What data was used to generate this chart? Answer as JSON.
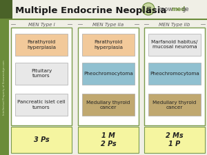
{
  "title": "Multiple Endocrine Neoplasia",
  "bg_color": "#f0efe6",
  "header_bg": "#f0efe6",
  "dark_green": "#4a6228",
  "mid_green": "#6b8c3a",
  "light_green": "#8aaa50",
  "sidebar_color": "#4a6228",
  "outer_box_color": "#7a9a4a",
  "columns": [
    {
      "label": "MEN Type I",
      "boxes": [
        {
          "text": "Parathyroid\nhyperplasia",
          "color": "#f2c99a"
        },
        {
          "text": "Pituitary\ntumors",
          "color": "#e8e8e8"
        },
        {
          "text": "Pancreatic islet cell\ntumors",
          "color": "#e8e8e8"
        }
      ],
      "footer_text": "3 Ps",
      "footer_color": "#f5f5a0"
    },
    {
      "label": "MEN Type IIa",
      "boxes": [
        {
          "text": "Parathyroid\nhyperplasia",
          "color": "#f2c99a"
        },
        {
          "text": "Pheochromocytoma",
          "color": "#90c0d0"
        },
        {
          "text": "Medullary thyroid\ncancer",
          "color": "#c0a870"
        }
      ],
      "footer_text": "1 M\n2 Ps",
      "footer_color": "#f5f5a0"
    },
    {
      "label": "MEN Type IIb",
      "boxes": [
        {
          "text": "Marfanoid habitus/\nmucosal neuroma",
          "color": "#e8e8e8"
        },
        {
          "text": "Pheochromocytoma",
          "color": "#90c0d0"
        },
        {
          "text": "Medullary thyroid\ncancer",
          "color": "#c0a870"
        }
      ],
      "footer_text": "2 Ms\n1 P",
      "footer_color": "#f5f5a0"
    }
  ]
}
